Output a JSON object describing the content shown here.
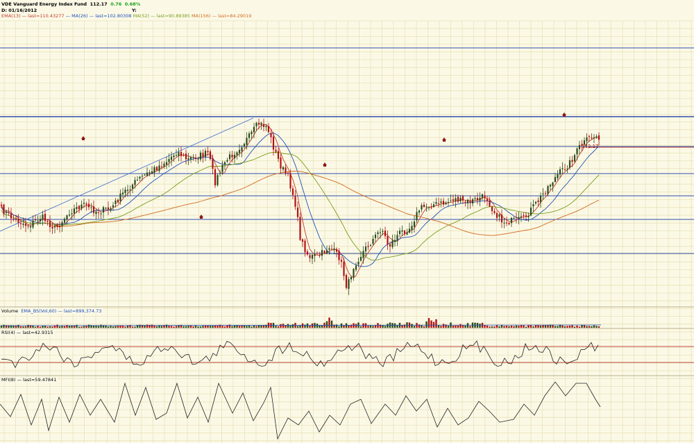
{
  "header": {
    "symbol": "VDE",
    "name": "Vanguard Energy Index Fund",
    "price": "112.17",
    "change": "0.76",
    "change_pct": "0.68%",
    "date_label": "D: 01/16/2012",
    "y_label": "Y:"
  },
  "legend": {
    "ema13": "EMA(13)",
    "ema13_last": "last=110.43277",
    "ma26": "MA(26)",
    "ma26_last": "last=102.80308",
    "ma52": "MA(52)",
    "ma52_last": "last=90.89385",
    "ma156": "MA(156)",
    "ma156_last": "last=84.29019",
    "sep": "—"
  },
  "price_marker": "112.17",
  "volume": {
    "label": "Volume",
    "ema_label": "EMA_BS(Vol,60)",
    "ema_last": "last=899,374.73"
  },
  "rsi": {
    "label": "RSI(4)",
    "last": "last=42.9315"
  },
  "mfi": {
    "label": "MFI(8)",
    "last": "last=59.47841"
  },
  "colors": {
    "background": "#fbf9e6",
    "grid": "#e9e2b8",
    "up": "#2a4a1a",
    "down": "#b01010",
    "ema13": "#c0392b",
    "ma26": "#1f4fb8",
    "ma52": "#7a9c1d",
    "ma156": "#d2691e",
    "hline": "#3050a8",
    "change": "#1aa01a"
  },
  "chart_data": {
    "type": "line",
    "title": "VDE Vanguard Energy Index Fund",
    "series": [
      {
        "name": "EMA(13)",
        "last": 110.43277
      },
      {
        "name": "MA(26)",
        "last": 102.80308
      },
      {
        "name": "MA(52)",
        "last": 90.89385
      },
      {
        "name": "MA(156)",
        "last": 84.29019
      }
    ],
    "price_key": [
      [
        0,
        300
      ],
      [
        20,
        315
      ],
      [
        40,
        325
      ],
      [
        60,
        312
      ],
      [
        80,
        330
      ],
      [
        100,
        305
      ],
      [
        120,
        295
      ],
      [
        140,
        305
      ],
      [
        160,
        300
      ],
      [
        180,
        275
      ],
      [
        200,
        258
      ],
      [
        220,
        245
      ],
      [
        240,
        232
      ],
      [
        255,
        218
      ],
      [
        270,
        230
      ],
      [
        285,
        225
      ],
      [
        300,
        220
      ],
      [
        310,
        262
      ],
      [
        325,
        232
      ],
      [
        345,
        212
      ],
      [
        360,
        196
      ],
      [
        372,
        178
      ],
      [
        385,
        182
      ],
      [
        395,
        215
      ],
      [
        405,
        240
      ],
      [
        415,
        255
      ],
      [
        425,
        290
      ],
      [
        433,
        345
      ],
      [
        445,
        370
      ],
      [
        460,
        368
      ],
      [
        475,
        355
      ],
      [
        490,
        372
      ],
      [
        500,
        415
      ],
      [
        510,
        382
      ],
      [
        525,
        360
      ],
      [
        540,
        342
      ],
      [
        550,
        328
      ],
      [
        560,
        355
      ],
      [
        575,
        336
      ],
      [
        590,
        328
      ],
      [
        605,
        300
      ],
      [
        620,
        295
      ],
      [
        640,
        293
      ],
      [
        655,
        286
      ],
      [
        670,
        292
      ],
      [
        685,
        288
      ],
      [
        700,
        282
      ],
      [
        710,
        302
      ],
      [
        725,
        320
      ],
      [
        740,
        318
      ],
      [
        755,
        315
      ],
      [
        765,
        302
      ],
      [
        775,
        290
      ],
      [
        790,
        268
      ],
      [
        805,
        250
      ],
      [
        820,
        236
      ],
      [
        835,
        212
      ],
      [
        850,
        198
      ],
      [
        865,
        196
      ]
    ],
    "rsi_levels": [
      70,
      30
    ],
    "mfi_key": [
      [
        0,
        582
      ],
      [
        15,
        600
      ],
      [
        30,
        568
      ],
      [
        45,
        612
      ],
      [
        60,
        575
      ],
      [
        70,
        620
      ],
      [
        85,
        572
      ],
      [
        100,
        608
      ],
      [
        115,
        568
      ],
      [
        130,
        598
      ],
      [
        145,
        575
      ],
      [
        165,
        608
      ],
      [
        180,
        552
      ],
      [
        195,
        598
      ],
      [
        210,
        558
      ],
      [
        225,
        604
      ],
      [
        240,
        595
      ],
      [
        255,
        552
      ],
      [
        270,
        602
      ],
      [
        285,
        572
      ],
      [
        300,
        608
      ],
      [
        315,
        552
      ],
      [
        335,
        595
      ],
      [
        350,
        566
      ],
      [
        365,
        606
      ],
      [
        380,
        580
      ],
      [
        390,
        558
      ],
      [
        400,
        632
      ],
      [
        415,
        602
      ],
      [
        430,
        612
      ],
      [
        445,
        592
      ],
      [
        460,
        622
      ],
      [
        475,
        598
      ],
      [
        490,
        612
      ],
      [
        505,
        582
      ],
      [
        520,
        575
      ],
      [
        535,
        610
      ],
      [
        555,
        582
      ],
      [
        570,
        598
      ],
      [
        585,
        570
      ],
      [
        600,
        592
      ],
      [
        615,
        575
      ],
      [
        630,
        615
      ],
      [
        645,
        588
      ],
      [
        660,
        612
      ],
      [
        675,
        602
      ],
      [
        690,
        578
      ],
      [
        705,
        592
      ],
      [
        720,
        608
      ],
      [
        740,
        604
      ],
      [
        755,
        582
      ],
      [
        770,
        598
      ],
      [
        785,
        570
      ],
      [
        800,
        550
      ],
      [
        815,
        570
      ],
      [
        830,
        552
      ],
      [
        845,
        552
      ],
      [
        858,
        575
      ],
      [
        865,
        586
      ]
    ]
  }
}
